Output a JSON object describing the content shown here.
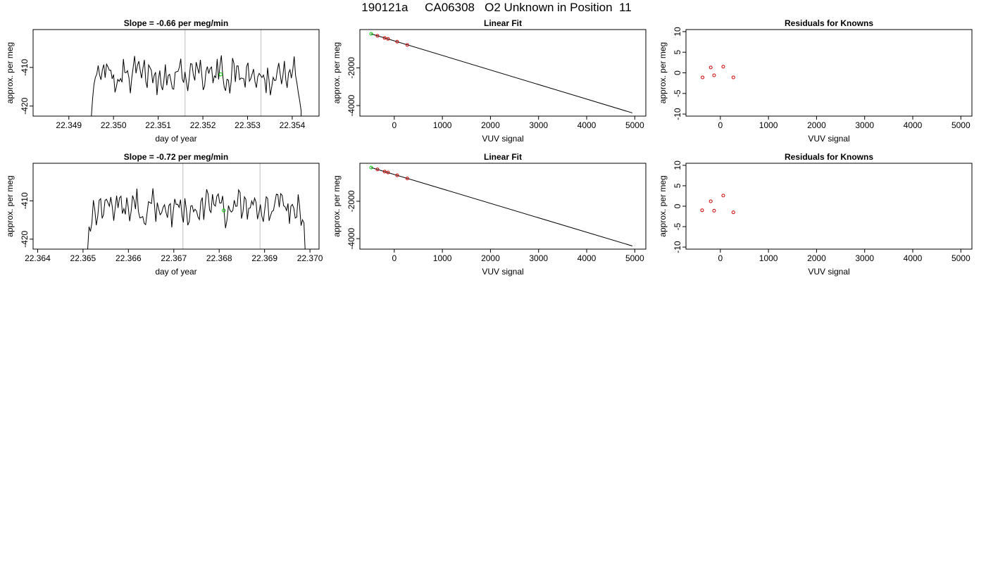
{
  "page_title": "190121a     CA06308   O2 Unknown in Position  11",
  "chart_data": [
    {
      "id": "ts1",
      "type": "line",
      "title": "Slope =  -0.66  per meg/min",
      "xlabel": "day of year",
      "ylabel": "approx. per meg",
      "xlim": [
        22.3482,
        22.3546
      ],
      "ylim": [
        -422.6,
        -400.2
      ],
      "xticks": [
        "22.349",
        "22.350",
        "22.351",
        "22.352",
        "22.353",
        "22.354"
      ],
      "yticks": [
        "-420",
        "-410"
      ],
      "vlines": [
        22.3516,
        22.3533
      ],
      "vline_color": "#c8c8c8",
      "line_color": "#000000",
      "start": 22.3495,
      "end": 22.3542,
      "level": -411.7,
      "marker": {
        "x": 22.3524,
        "y": -411.8,
        "color": "#00cc00"
      }
    },
    {
      "id": "lin1",
      "type": "scatter",
      "title": "Linear Fit",
      "xlabel": "VUV signal",
      "ylabel": "approx. per meg",
      "xlim": [
        -715,
        5230
      ],
      "ylim": [
        -4560,
        30
      ],
      "xticks": [
        "0",
        "1000",
        "2000",
        "3000",
        "4000",
        "5000"
      ],
      "yticks": [
        "-4000",
        "-2000"
      ],
      "fit_line": {
        "x": [
          -480,
          4950
        ],
        "y": [
          -200,
          -4390
        ]
      },
      "points": {
        "x": [
          -350,
          -200,
          -130,
          60,
          270
        ],
        "y": [
          -300,
          -415,
          -465,
          -615,
          -785
        ],
        "color": "#cc0000"
      },
      "highlight": {
        "x": -480,
        "y": -200,
        "color": "#00cc00"
      }
    },
    {
      "id": "res1",
      "type": "scatter",
      "title": "Residuals for Knowns",
      "xlabel": "VUV signal",
      "ylabel": "approx. per meg",
      "xlim": [
        -715,
        5230
      ],
      "ylim": [
        -10.5,
        10.5
      ],
      "xticks": [
        "0",
        "1000",
        "2000",
        "3000",
        "4000",
        "5000"
      ],
      "yticks": [
        "-10",
        "-5",
        "0",
        "5",
        "10"
      ],
      "points": {
        "x": [
          -370,
          -200,
          -130,
          60,
          270
        ],
        "y": [
          -1.1,
          1.3,
          -0.6,
          1.5,
          -1.1
        ],
        "color": "#cc0000"
      }
    },
    {
      "id": "ts2",
      "type": "line",
      "title": "Slope =  -0.72  per meg/min",
      "xlabel": "day of year",
      "ylabel": "approx. per meg",
      "xlim": [
        22.3639,
        22.3702
      ],
      "ylim": [
        -422.6,
        -400.2
      ],
      "xticks": [
        "22.364",
        "22.365",
        "22.366",
        "22.367",
        "22.368",
        "22.369",
        "22.370"
      ],
      "yticks": [
        "-420",
        "-410"
      ],
      "vlines": [
        22.3672,
        22.3689
      ],
      "vline_color": "#c8c8c8",
      "line_color": "#000000",
      "start": 22.3651,
      "end": 22.3699,
      "level": -411.7,
      "marker": {
        "x": 22.3681,
        "y": -412.5,
        "color": "#00cc00"
      }
    },
    {
      "id": "lin2",
      "type": "scatter",
      "title": "Linear Fit",
      "xlabel": "VUV signal",
      "ylabel": "approx. per meg",
      "xlim": [
        -715,
        5230
      ],
      "ylim": [
        -4560,
        30
      ],
      "xticks": [
        "0",
        "1000",
        "2000",
        "3000",
        "4000",
        "5000"
      ],
      "yticks": [
        "-4000",
        "-2000"
      ],
      "fit_line": {
        "x": [
          -480,
          4950
        ],
        "y": [
          -200,
          -4390
        ]
      },
      "points": {
        "x": [
          -350,
          -200,
          -130,
          60,
          270
        ],
        "y": [
          -300,
          -415,
          -465,
          -615,
          -785
        ],
        "color": "#cc0000"
      },
      "highlight": {
        "x": -480,
        "y": -200,
        "color": "#00cc00"
      }
    },
    {
      "id": "res2",
      "type": "scatter",
      "title": "Residuals for Knowns",
      "xlabel": "VUV signal",
      "ylabel": "approx. per meg",
      "xlim": [
        -715,
        5230
      ],
      "ylim": [
        -10.5,
        10.5
      ],
      "xticks": [
        "0",
        "1000",
        "2000",
        "3000",
        "4000",
        "5000"
      ],
      "yticks": [
        "-10",
        "-5",
        "0",
        "5",
        "10"
      ],
      "points": {
        "x": [
          -380,
          -200,
          -130,
          60,
          270
        ],
        "y": [
          -1.0,
          1.2,
          -1.1,
          2.6,
          -1.5
        ],
        "color": "#cc0000"
      }
    }
  ]
}
